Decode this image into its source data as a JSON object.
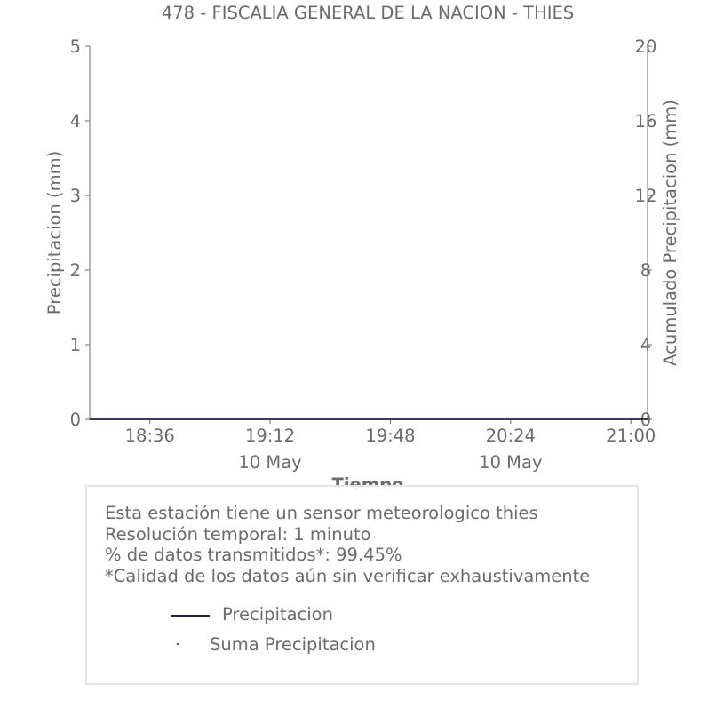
{
  "chart_data": {
    "type": "line",
    "title": "478 - FISCALIA GENERAL DE LA NACION - THIES",
    "xlabel": "Tiempo",
    "ylabel": "Precipitacion (mm)",
    "y2label": "Acumulado Precipitacion (mm)",
    "ylim": [
      0,
      5
    ],
    "y2lim": [
      0,
      20
    ],
    "yticks": [
      "0",
      "1",
      "2",
      "3",
      "4",
      "5"
    ],
    "y2ticks": [
      "0",
      "4",
      "8",
      "12",
      "16",
      "20"
    ],
    "xrange": [
      "18:18",
      "21:05"
    ],
    "xticks": [
      {
        "t": "18:36",
        "label": "18:36",
        "date": ""
      },
      {
        "t": "19:12",
        "label": "19:12",
        "date": "10 May"
      },
      {
        "t": "19:48",
        "label": "19:48",
        "date": ""
      },
      {
        "t": "20:24",
        "label": "20:24",
        "date": "10 May"
      },
      {
        "t": "21:00",
        "label": "21:00",
        "date": ""
      }
    ],
    "series": [
      {
        "name": "Precipitacion",
        "axis": "left",
        "color": "#1f2140",
        "x": [
          "18:18",
          "18:36",
          "19:12",
          "19:48",
          "20:24",
          "21:00",
          "21:05"
        ],
        "values": [
          0,
          0,
          0,
          0,
          0,
          0,
          0
        ]
      },
      {
        "name": "Suma Precipitacion",
        "axis": "right",
        "color": "#1f2140",
        "x": [
          "18:18",
          "18:36",
          "19:12",
          "19:48",
          "20:24",
          "21:00",
          "21:05"
        ],
        "values": [
          0,
          0,
          0,
          0,
          0,
          0,
          0
        ]
      }
    ],
    "grid": false,
    "legend": "bottom"
  },
  "info": {
    "lines": [
      "Esta estación tiene un sensor meteorologico thies",
      "Resolución temporal: 1 minuto",
      "% de datos transmitidos*: 99.45%",
      "*Calidad de los datos aún sin verificar exhaustivamente"
    ]
  },
  "colors": {
    "axis": "#6b6b6b",
    "series": "#1f2140",
    "box_border": "#e6e6e6"
  }
}
